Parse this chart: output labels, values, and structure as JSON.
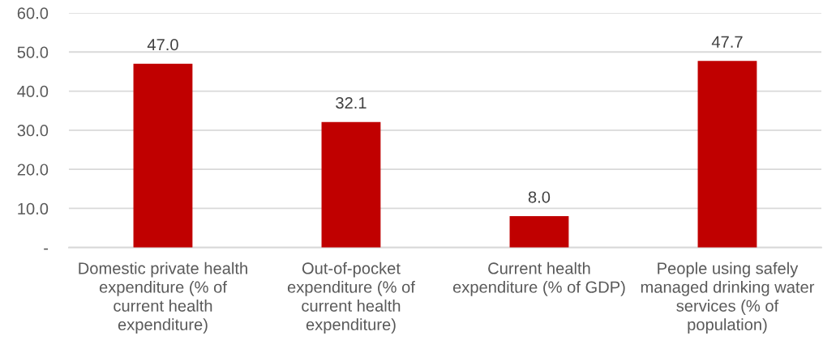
{
  "chart_data": {
    "type": "bar",
    "categories": [
      "Domestic private health\nexpenditure (% of\ncurrent health\nexpenditure)",
      "Out-of-pocket\nexpenditure (% of\ncurrent health\nexpenditure)",
      "Current health\nexpenditure (% of GDP)",
      "People using safely\nmanaged drinking water\nservices (% of\npopulation)"
    ],
    "values": [
      47.0,
      32.1,
      8.0,
      47.7
    ],
    "value_labels": [
      "47.0",
      "32.1",
      "8.0",
      "47.7"
    ],
    "color": "#c00000",
    "ylim": [
      0,
      60
    ],
    "yticks": [
      {
        "value": 0,
        "label": "-"
      },
      {
        "value": 10,
        "label": "10.0"
      },
      {
        "value": 20,
        "label": "20.0"
      },
      {
        "value": 30,
        "label": "30.0"
      },
      {
        "value": 40,
        "label": "40.0"
      },
      {
        "value": 50,
        "label": "50.0"
      },
      {
        "value": 60,
        "label": "60.0"
      }
    ],
    "grid": "y",
    "legend": false
  }
}
